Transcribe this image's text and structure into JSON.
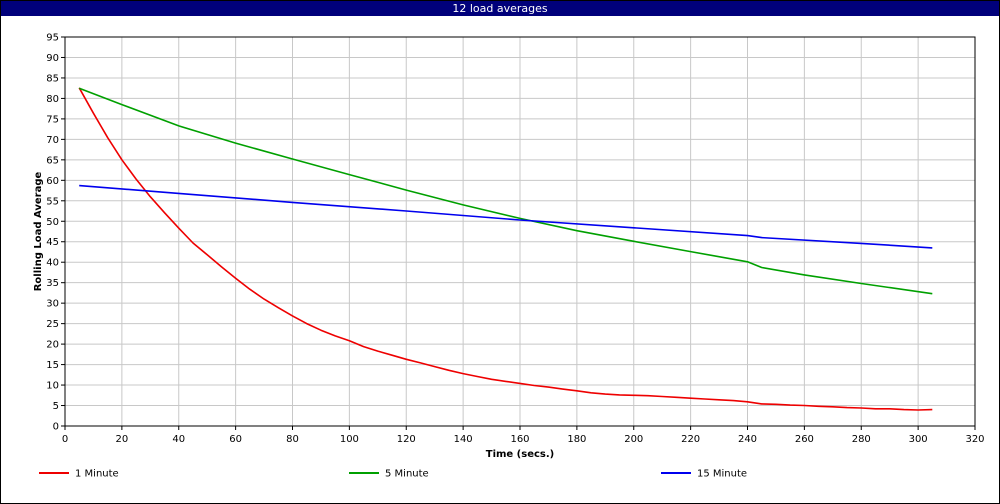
{
  "window": {
    "title": "12 load averages"
  },
  "chart_data": {
    "type": "line",
    "title": "12 load averages",
    "xlabel": "Time (secs.)",
    "ylabel": "Rolling Load Average",
    "xlim": [
      0,
      320
    ],
    "ylim": [
      0,
      95
    ],
    "xticks": [
      0,
      20,
      40,
      60,
      80,
      100,
      120,
      140,
      160,
      180,
      200,
      220,
      240,
      260,
      280,
      300,
      320
    ],
    "yticks": [
      0,
      5,
      10,
      15,
      20,
      25,
      30,
      35,
      40,
      45,
      50,
      55,
      60,
      65,
      70,
      75,
      80,
      85,
      90,
      95
    ],
    "grid": true,
    "legend_position": "bottom",
    "series": [
      {
        "name": "1 Minute",
        "color": "#ee0000",
        "x": [
          5,
          10,
          15,
          20,
          25,
          30,
          35,
          40,
          45,
          50,
          55,
          60,
          65,
          70,
          75,
          80,
          85,
          90,
          95,
          100,
          105,
          110,
          115,
          120,
          125,
          130,
          135,
          140,
          145,
          150,
          155,
          160,
          165,
          170,
          175,
          180,
          185,
          190,
          195,
          200,
          205,
          210,
          215,
          220,
          225,
          230,
          235,
          240,
          245,
          250,
          255,
          260,
          265,
          270,
          275,
          280,
          285,
          290,
          295,
          300,
          305
        ],
        "y": [
          82.6,
          76.4,
          70.4,
          65.0,
          60.3,
          56.0,
          52.1,
          48.3,
          44.7,
          41.8,
          38.9,
          36.1,
          33.4,
          31.0,
          28.9,
          26.9,
          25.0,
          23.4,
          22.0,
          20.8,
          19.4,
          18.3,
          17.3,
          16.3,
          15.4,
          14.5,
          13.6,
          12.8,
          12.1,
          11.4,
          10.9,
          10.4,
          9.9,
          9.5,
          9.0,
          8.6,
          8.1,
          7.8,
          7.6,
          7.5,
          7.4,
          7.2,
          7.0,
          6.8,
          6.6,
          6.4,
          6.2,
          5.9,
          5.4,
          5.3,
          5.1,
          5.0,
          4.8,
          4.7,
          4.5,
          4.4,
          4.2,
          4.2,
          4.0,
          3.9,
          4.0
        ]
      },
      {
        "name": "5 Minute",
        "color": "#00a000",
        "x": [
          5,
          20,
          40,
          60,
          80,
          100,
          120,
          140,
          160,
          180,
          200,
          220,
          240,
          245,
          260,
          280,
          305
        ],
        "y": [
          82.5,
          78.5,
          73.3,
          69.1,
          65.2,
          61.4,
          57.6,
          54.0,
          50.7,
          47.7,
          45.1,
          42.6,
          40.1,
          38.7,
          36.9,
          34.8,
          32.3
        ]
      },
      {
        "name": "15 Minute",
        "color": "#0000ee",
        "x": [
          5,
          40,
          80,
          120,
          160,
          200,
          240,
          245,
          280,
          305
        ],
        "y": [
          58.7,
          56.8,
          54.6,
          52.5,
          50.3,
          48.4,
          46.5,
          46.0,
          44.6,
          43.5
        ]
      }
    ]
  }
}
